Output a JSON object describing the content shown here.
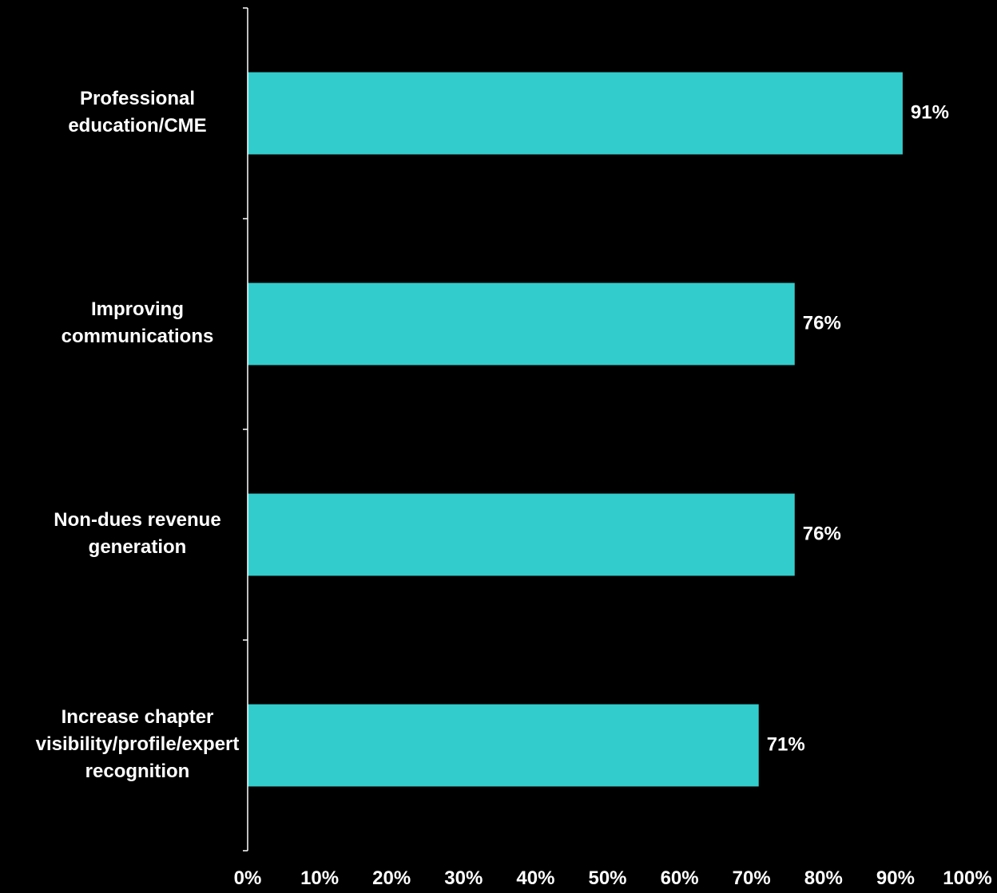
{
  "chart_data": {
    "type": "bar",
    "orientation": "horizontal",
    "categories": [
      [
        "Professional",
        "education/CME"
      ],
      [
        "Improving",
        "communications"
      ],
      [
        "Non-dues revenue",
        "generation"
      ],
      [
        "Increase chapter",
        "visibility/profile/expert",
        "recognition"
      ]
    ],
    "values": [
      91,
      76,
      76,
      71
    ],
    "value_labels": [
      "91%",
      "76%",
      "76%",
      "71%"
    ],
    "xlim": [
      0,
      100
    ],
    "x_ticks": [
      0,
      10,
      20,
      30,
      40,
      50,
      60,
      70,
      80,
      90,
      100
    ],
    "x_tick_labels": [
      "0%",
      "10%",
      "20%",
      "30%",
      "40%",
      "50%",
      "60%",
      "70%",
      "80%",
      "90%",
      "100%"
    ],
    "grid": false,
    "legend": "none"
  },
  "colors": {
    "background": "#000000",
    "bar": "#33CCCC",
    "text": "#ffffff",
    "axis": "#ffffff"
  }
}
